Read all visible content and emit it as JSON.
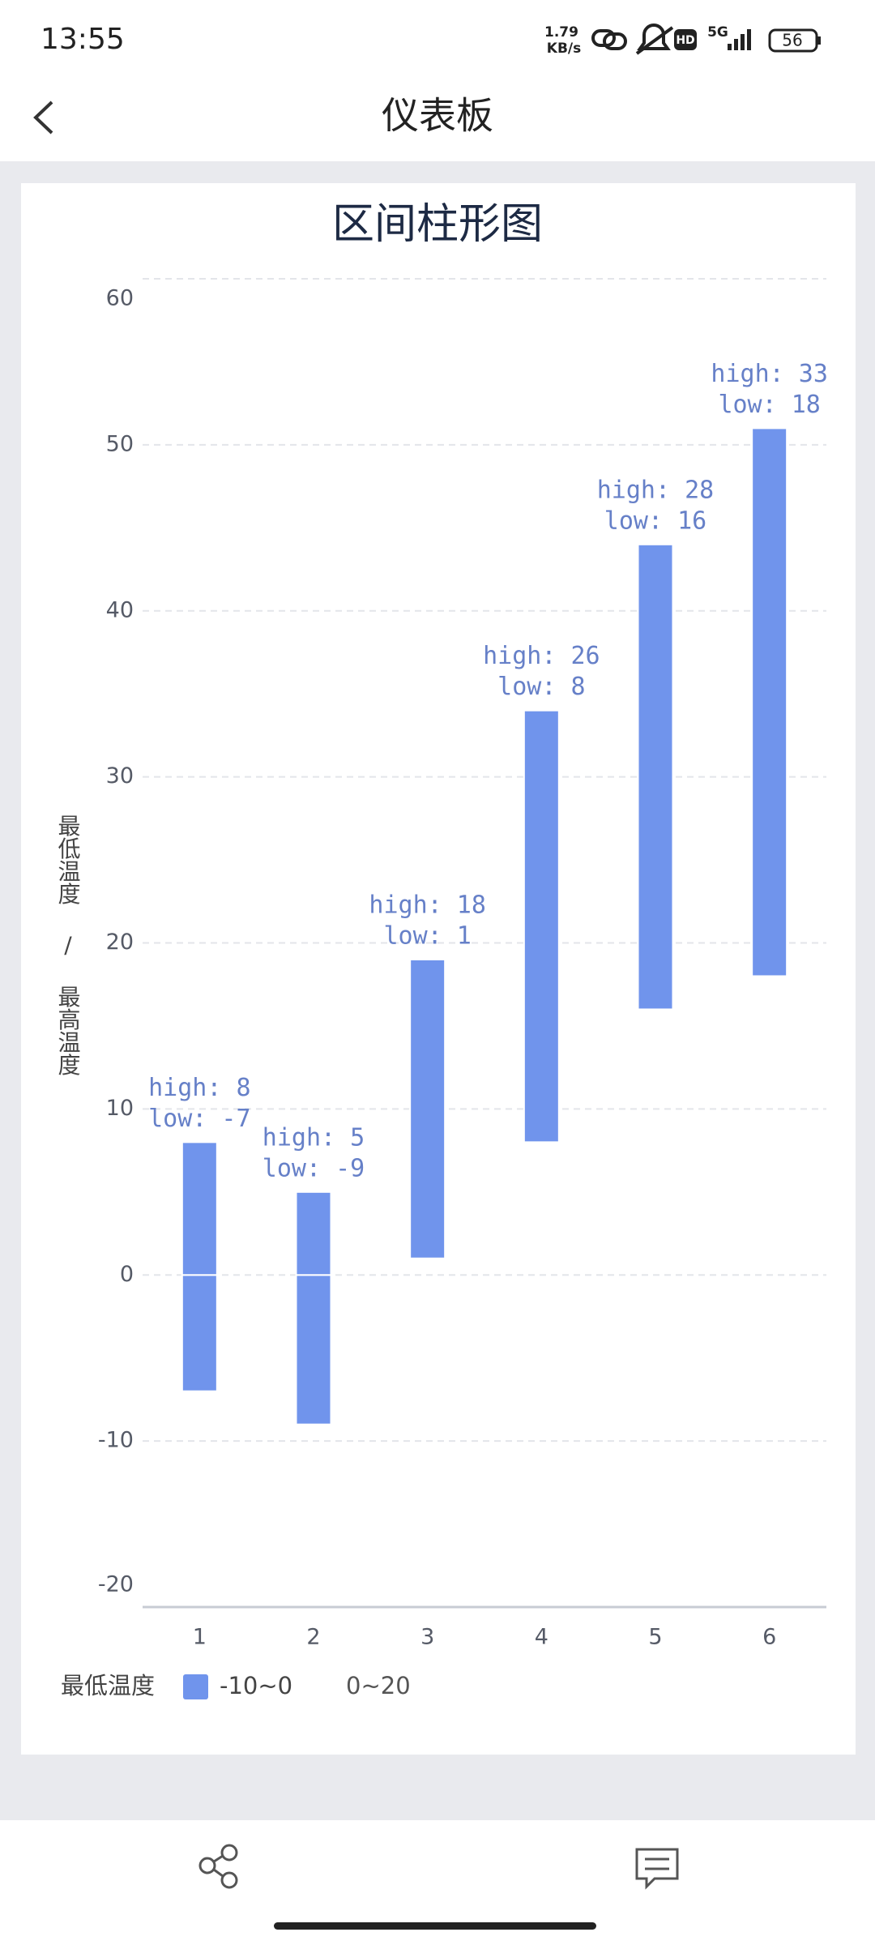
{
  "status_bar": {
    "time": "13:55",
    "speed": "1.79",
    "speed_unit": "KB/s",
    "hd": "HD",
    "network": "5G",
    "battery": "56"
  },
  "header": {
    "title": "仪表板"
  },
  "chart_data": {
    "type": "range-bar",
    "title": "区间柱形图",
    "y_label": "最低温度 / 最高温度",
    "categories": [
      "1",
      "2",
      "3",
      "4",
      "5",
      "6"
    ],
    "series": [
      {
        "values": [
          -7,
          -9,
          1,
          8,
          16,
          18
        ],
        "value_labels": [
          "low: -7",
          "low: -9",
          "low: 1",
          "low: 8",
          "low: 16",
          "low: 18"
        ],
        "visual_map": true
      },
      {
        "values": [
          8,
          5,
          18,
          26,
          28,
          33
        ],
        "value_labels": [
          "high: 8",
          "high: 5",
          "high: 18",
          "high: 26",
          "high: 28",
          "high: 33"
        ],
        "color": "#7094ec"
      }
    ],
    "stacked": true,
    "ylim": [
      -20,
      60
    ],
    "yticks": [
      -20,
      -10,
      0,
      10,
      20,
      30,
      40,
      50,
      60
    ],
    "grid": true,
    "visual_map": {
      "title": "最低温度",
      "pieces": [
        {
          "min": -10,
          "max": 0,
          "label": "-10~0",
          "color": "#7094ec"
        },
        {
          "min": 0,
          "max": 20,
          "label": "0~20"
        }
      ]
    }
  }
}
